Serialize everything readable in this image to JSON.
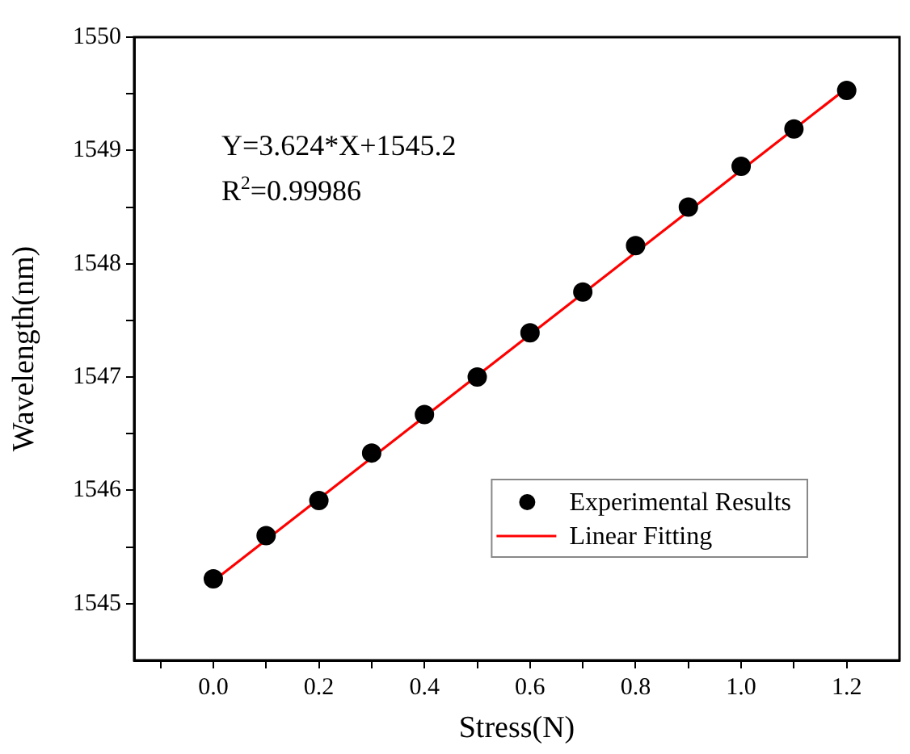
{
  "chart_data": {
    "type": "scatter",
    "xlabel": "Stress(N)",
    "ylabel": "Wavelength(nm)",
    "xlim": [
      -0.15,
      1.3
    ],
    "ylim": [
      1544.5,
      1550
    ],
    "xticks": [
      {
        "value": -0.1,
        "label": null
      },
      {
        "value": 0,
        "label": "0.0"
      },
      {
        "value": 0.1,
        "label": null
      },
      {
        "value": 0.2,
        "label": "0.2"
      },
      {
        "value": 0.3,
        "label": null
      },
      {
        "value": 0.4,
        "label": "0.4"
      },
      {
        "value": 0.5,
        "label": null
      },
      {
        "value": 0.6,
        "label": "0.6"
      },
      {
        "value": 0.7,
        "label": null
      },
      {
        "value": 0.8,
        "label": "0.8"
      },
      {
        "value": 0.9,
        "label": null
      },
      {
        "value": 1.0,
        "label": "1.0"
      },
      {
        "value": 1.1,
        "label": null
      },
      {
        "value": 1.2,
        "label": "1.2"
      }
    ],
    "yticks": [
      1545,
      {
        "value": 1545.5,
        "label": null
      },
      1546,
      {
        "value": 1546.5,
        "label": null
      },
      1547,
      {
        "value": 1547.5,
        "label": null
      },
      1548,
      {
        "value": 1548.5,
        "label": null
      },
      1549,
      {
        "value": 1549.5,
        "label": null
      },
      1550
    ],
    "grid": false,
    "legend": "bottom right",
    "annotations": [
      "Y=3.624*X+1545.2",
      "R$^{2}$=0.99986"
    ],
    "series": [
      {
        "name": "Experimental Results",
        "marker": "circle",
        "color": "#000000",
        "x": [
          0,
          0.1,
          0.2,
          0.3,
          0.4,
          0.5,
          0.6,
          0.7,
          0.8,
          0.9,
          1.0,
          1.1,
          1.2
        ],
        "values": [
          1545.22,
          1545.6,
          1545.91,
          1546.33,
          1546.67,
          1547.0,
          1547.39,
          1547.75,
          1548.16,
          1548.5,
          1548.86,
          1549.19,
          1549.53
        ]
      },
      {
        "name": "Linear Fitting",
        "type": "line",
        "marker": "none",
        "line_style": "solid",
        "color": "#ff0000",
        "x": [
          0,
          1.2
        ],
        "values": [
          1545.2,
          1549.55
        ]
      }
    ]
  }
}
